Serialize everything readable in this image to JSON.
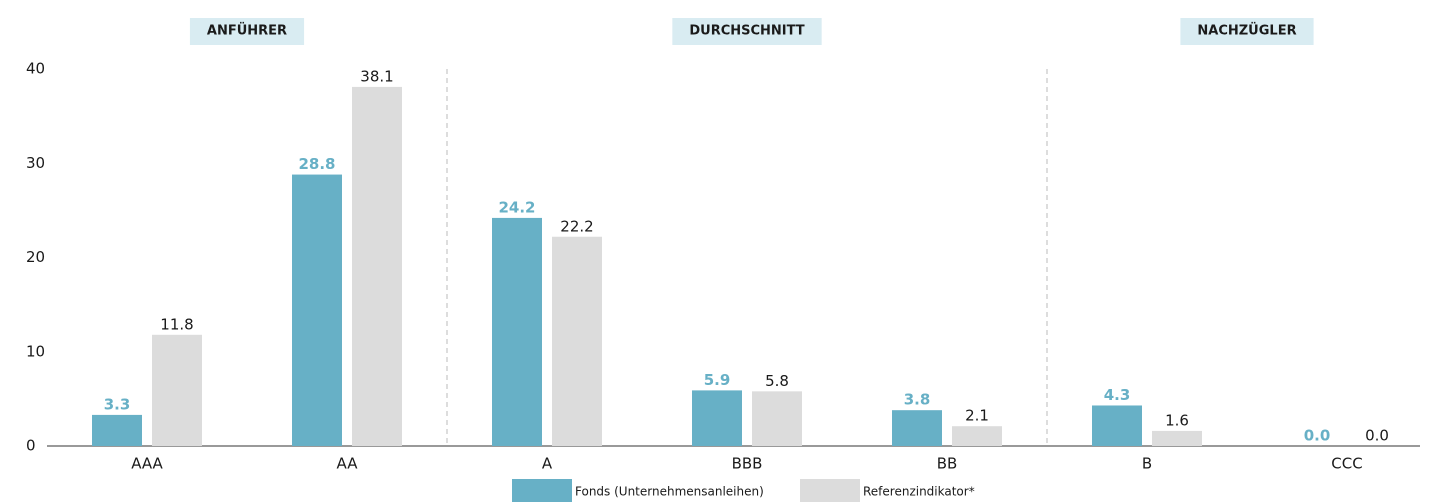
{
  "chart_data": {
    "type": "bar",
    "groups": [
      "ANFÜHRER",
      "DURCHSCHNITT",
      "NACHZÜGLER"
    ],
    "categories": [
      "AAA",
      "AA",
      "A",
      "BBB",
      "BB",
      "B",
      "CCC"
    ],
    "series": [
      {
        "name": "Fonds (Unternehmensanleihen)",
        "color": "#67b0c6",
        "values": [
          3.3,
          28.8,
          24.2,
          5.9,
          3.8,
          4.3,
          0
        ],
        "value_labels": [
          "3.3",
          "28.8",
          "24.2",
          "5.9",
          "3.8",
          "4.3",
          "0.0"
        ]
      },
      {
        "name": "Referenzindikator*",
        "color": "#dcdcdc",
        "values": [
          11.8,
          38.1,
          22.2,
          5.8,
          2.1,
          1.6,
          0
        ],
        "value_labels": [
          "11.8",
          "38.1",
          "22.2",
          "5.8",
          "2.1",
          "1.6",
          "0.0"
        ]
      }
    ],
    "ylim": [
      0,
      40
    ],
    "yticks": [
      0,
      10,
      20,
      30,
      40
    ]
  }
}
